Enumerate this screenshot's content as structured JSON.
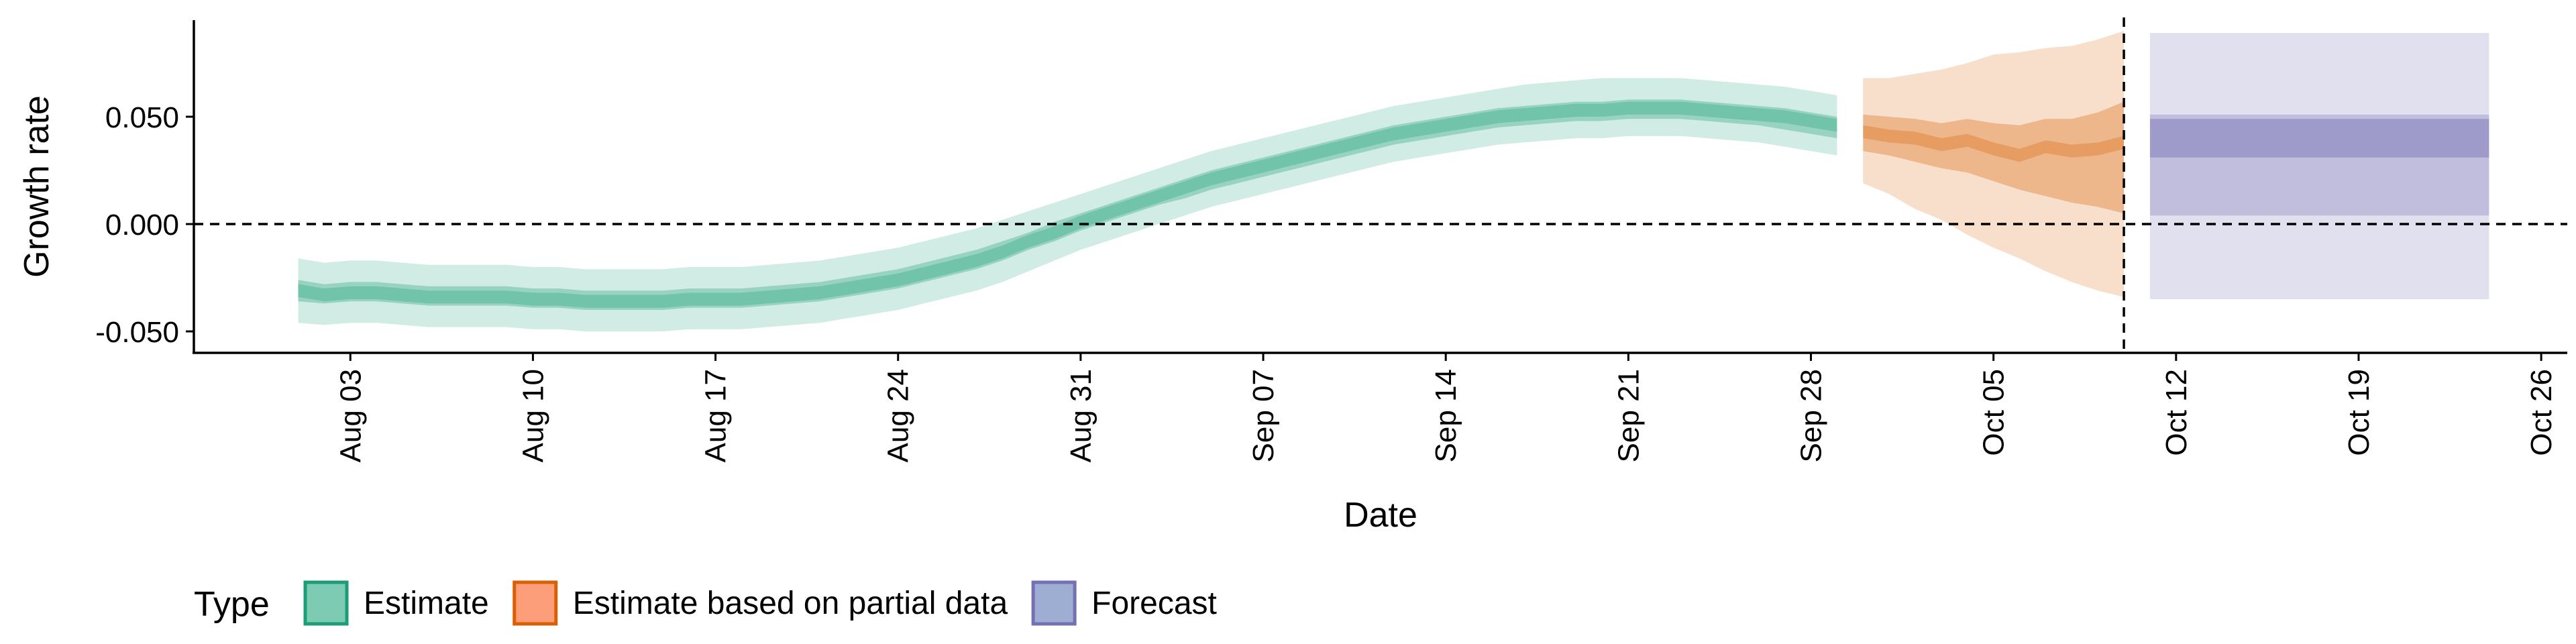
{
  "chart_data": {
    "type": "area",
    "title": "",
    "xlabel": "Date",
    "ylabel": "Growth rate",
    "x_range": [
      "2020-07-28",
      "2020-10-27"
    ],
    "ylim": [
      -0.06,
      0.095
    ],
    "grid": false,
    "x_ticks": [
      {
        "date": "2020-08-03",
        "label": "Aug 03"
      },
      {
        "date": "2020-08-10",
        "label": "Aug 10"
      },
      {
        "date": "2020-08-17",
        "label": "Aug 17"
      },
      {
        "date": "2020-08-24",
        "label": "Aug 24"
      },
      {
        "date": "2020-08-31",
        "label": "Aug 31"
      },
      {
        "date": "2020-09-07",
        "label": "Sep 07"
      },
      {
        "date": "2020-09-14",
        "label": "Sep 14"
      },
      {
        "date": "2020-09-21",
        "label": "Sep 21"
      },
      {
        "date": "2020-09-28",
        "label": "Sep 28"
      },
      {
        "date": "2020-10-05",
        "label": "Oct 05"
      },
      {
        "date": "2020-10-12",
        "label": "Oct 12"
      },
      {
        "date": "2020-10-19",
        "label": "Oct 19"
      },
      {
        "date": "2020-10-26",
        "label": "Oct 26"
      }
    ],
    "y_ticks": [
      {
        "value": 0.05,
        "label": "0.050"
      },
      {
        "value": 0.0,
        "label": "0.000"
      },
      {
        "value": -0.05,
        "label": "-0.050"
      }
    ],
    "reference_lines": {
      "horizontal_y": 0.0,
      "vertical_date": "2020-10-10"
    },
    "legend": {
      "title": "Type",
      "position": "bottom-left",
      "entries": [
        {
          "label": "Estimate",
          "fill": "#66c2a5",
          "stroke": "#1b9e77"
        },
        {
          "label": "Estimate based on partial data",
          "fill": "#fc8d62",
          "stroke": "#d95f02"
        },
        {
          "label": "Forecast",
          "fill": "#8da0cb",
          "stroke": "#7570b3"
        }
      ]
    },
    "series": [
      {
        "name": "Estimate",
        "fill": "#1b9e77",
        "x": [
          "2020-08-01",
          "2020-08-02",
          "2020-08-03",
          "2020-08-04",
          "2020-08-05",
          "2020-08-06",
          "2020-08-07",
          "2020-08-08",
          "2020-08-09",
          "2020-08-10",
          "2020-08-11",
          "2020-08-12",
          "2020-08-13",
          "2020-08-14",
          "2020-08-15",
          "2020-08-16",
          "2020-08-17",
          "2020-08-18",
          "2020-08-19",
          "2020-08-20",
          "2020-08-21",
          "2020-08-22",
          "2020-08-23",
          "2020-08-24",
          "2020-08-25",
          "2020-08-26",
          "2020-08-27",
          "2020-08-28",
          "2020-08-29",
          "2020-08-30",
          "2020-08-31",
          "2020-09-01",
          "2020-09-02",
          "2020-09-03",
          "2020-09-04",
          "2020-09-05",
          "2020-09-06",
          "2020-09-07",
          "2020-09-08",
          "2020-09-09",
          "2020-09-10",
          "2020-09-11",
          "2020-09-12",
          "2020-09-13",
          "2020-09-14",
          "2020-09-15",
          "2020-09-16",
          "2020-09-17",
          "2020-09-18",
          "2020-09-19",
          "2020-09-20",
          "2020-09-21",
          "2020-09-22",
          "2020-09-23",
          "2020-09-24",
          "2020-09-25",
          "2020-09-26",
          "2020-09-27",
          "2020-09-28",
          "2020-09-29"
        ],
        "median": [
          -0.031,
          -0.033,
          -0.032,
          -0.032,
          -0.033,
          -0.034,
          -0.034,
          -0.034,
          -0.034,
          -0.035,
          -0.035,
          -0.036,
          -0.036,
          -0.036,
          -0.036,
          -0.035,
          -0.035,
          -0.035,
          -0.034,
          -0.033,
          -0.032,
          -0.03,
          -0.028,
          -0.026,
          -0.023,
          -0.02,
          -0.017,
          -0.013,
          -0.008,
          -0.004,
          0.001,
          0.005,
          0.009,
          0.013,
          0.017,
          0.021,
          0.024,
          0.027,
          0.03,
          0.033,
          0.036,
          0.039,
          0.042,
          0.044,
          0.046,
          0.048,
          0.05,
          0.051,
          0.052,
          0.053,
          0.053,
          0.054,
          0.054,
          0.054,
          0.053,
          0.052,
          0.051,
          0.05,
          0.048,
          0.046
        ],
        "lower_50": [
          -0.036,
          -0.037,
          -0.036,
          -0.036,
          -0.037,
          -0.038,
          -0.038,
          -0.038,
          -0.038,
          -0.039,
          -0.039,
          -0.04,
          -0.04,
          -0.04,
          -0.04,
          -0.039,
          -0.039,
          -0.039,
          -0.038,
          -0.037,
          -0.036,
          -0.034,
          -0.032,
          -0.03,
          -0.027,
          -0.024,
          -0.021,
          -0.017,
          -0.012,
          -0.008,
          -0.003,
          0.001,
          0.005,
          0.009,
          0.012,
          0.016,
          0.019,
          0.022,
          0.025,
          0.028,
          0.031,
          0.034,
          0.037,
          0.039,
          0.041,
          0.043,
          0.045,
          0.046,
          0.047,
          0.048,
          0.048,
          0.049,
          0.049,
          0.049,
          0.048,
          0.047,
          0.046,
          0.044,
          0.042,
          0.04
        ],
        "upper_50": [
          -0.026,
          -0.028,
          -0.027,
          -0.027,
          -0.028,
          -0.029,
          -0.029,
          -0.029,
          -0.029,
          -0.03,
          -0.03,
          -0.031,
          -0.031,
          -0.031,
          -0.031,
          -0.03,
          -0.03,
          -0.03,
          -0.029,
          -0.028,
          -0.027,
          -0.025,
          -0.023,
          -0.021,
          -0.018,
          -0.015,
          -0.012,
          -0.008,
          -0.004,
          0.001,
          0.005,
          0.009,
          0.013,
          0.017,
          0.021,
          0.025,
          0.028,
          0.031,
          0.034,
          0.037,
          0.04,
          0.043,
          0.046,
          0.048,
          0.05,
          0.052,
          0.054,
          0.055,
          0.056,
          0.057,
          0.057,
          0.058,
          0.058,
          0.058,
          0.057,
          0.056,
          0.055,
          0.054,
          0.052,
          0.05
        ],
        "lower_90": [
          -0.046,
          -0.047,
          -0.046,
          -0.046,
          -0.047,
          -0.048,
          -0.048,
          -0.048,
          -0.048,
          -0.049,
          -0.049,
          -0.05,
          -0.05,
          -0.05,
          -0.05,
          -0.049,
          -0.049,
          -0.049,
          -0.048,
          -0.047,
          -0.046,
          -0.044,
          -0.042,
          -0.04,
          -0.037,
          -0.034,
          -0.031,
          -0.027,
          -0.022,
          -0.017,
          -0.012,
          -0.008,
          -0.004,
          0.0,
          0.004,
          0.008,
          0.011,
          0.014,
          0.017,
          0.02,
          0.023,
          0.026,
          0.029,
          0.031,
          0.033,
          0.035,
          0.037,
          0.038,
          0.039,
          0.04,
          0.04,
          0.041,
          0.041,
          0.041,
          0.04,
          0.039,
          0.038,
          0.036,
          0.034,
          0.032
        ],
        "upper_90": [
          -0.016,
          -0.018,
          -0.017,
          -0.017,
          -0.018,
          -0.019,
          -0.019,
          -0.019,
          -0.019,
          -0.02,
          -0.02,
          -0.021,
          -0.021,
          -0.021,
          -0.021,
          -0.02,
          -0.02,
          -0.02,
          -0.019,
          -0.018,
          -0.017,
          -0.015,
          -0.013,
          -0.011,
          -0.008,
          -0.005,
          -0.002,
          0.002,
          0.006,
          0.01,
          0.014,
          0.018,
          0.022,
          0.026,
          0.03,
          0.034,
          0.037,
          0.04,
          0.043,
          0.046,
          0.049,
          0.052,
          0.055,
          0.057,
          0.059,
          0.061,
          0.063,
          0.065,
          0.066,
          0.067,
          0.068,
          0.068,
          0.068,
          0.068,
          0.067,
          0.066,
          0.065,
          0.064,
          0.062,
          0.06
        ]
      },
      {
        "name": "Estimate based on partial data",
        "fill": "#d95f02",
        "x": [
          "2020-09-30",
          "2020-10-01",
          "2020-10-02",
          "2020-10-03",
          "2020-10-04",
          "2020-10-05",
          "2020-10-06",
          "2020-10-07",
          "2020-10-08",
          "2020-10-09",
          "2020-10-10"
        ],
        "median": [
          0.043,
          0.041,
          0.04,
          0.037,
          0.039,
          0.035,
          0.032,
          0.036,
          0.034,
          0.035,
          0.038
        ],
        "lower_50": [
          0.034,
          0.032,
          0.029,
          0.026,
          0.024,
          0.02,
          0.016,
          0.013,
          0.01,
          0.008,
          0.005
        ],
        "upper_50": [
          0.051,
          0.05,
          0.049,
          0.047,
          0.049,
          0.047,
          0.046,
          0.049,
          0.049,
          0.052,
          0.057
        ],
        "lower_90": [
          0.019,
          0.014,
          0.007,
          0.002,
          -0.005,
          -0.011,
          -0.016,
          -0.022,
          -0.027,
          -0.031,
          -0.034
        ],
        "upper_90": [
          0.068,
          0.068,
          0.07,
          0.072,
          0.075,
          0.079,
          0.08,
          0.082,
          0.083,
          0.086,
          0.09
        ]
      },
      {
        "name": "Forecast",
        "fill": "#7570b3",
        "x": [
          "2020-10-11",
          "2020-10-24"
        ],
        "median": [
          0.041,
          0.041
        ],
        "lower_50": [
          0.031,
          0.031
        ],
        "upper_50": [
          0.049,
          0.049
        ],
        "lower_75": [
          0.004,
          0.004
        ],
        "upper_75": [
          0.051,
          0.051
        ],
        "lower_90": [
          -0.035,
          -0.035
        ],
        "upper_90": [
          0.089,
          0.089
        ]
      }
    ]
  }
}
